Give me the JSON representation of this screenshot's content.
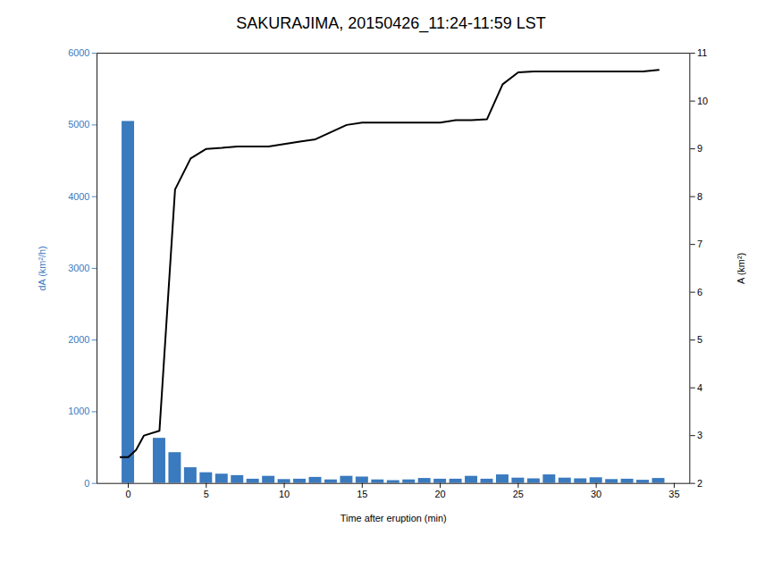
{
  "chart_data": {
    "type": "bar",
    "title": "SAKURAJIMA, 20150426_11:24-11:59 LST",
    "xlabel": "Time after eruption (min)",
    "ylabel": "dA (km²/h)",
    "y2label": "A (km²)",
    "xlim": [
      -2,
      36
    ],
    "xticks": [
      0,
      5,
      10,
      15,
      20,
      25,
      30,
      35
    ],
    "ylim": [
      0,
      6000
    ],
    "yticks": [
      0,
      1000,
      2000,
      3000,
      4000,
      5000,
      6000
    ],
    "y2lim": [
      2,
      11
    ],
    "y2ticks": [
      2,
      3,
      4,
      5,
      6,
      7,
      8,
      9,
      10,
      11
    ],
    "grid": false,
    "series": [
      {
        "type": "bar",
        "color": "#3a7abf",
        "x": [
          0,
          1,
          2,
          3,
          4,
          5,
          6,
          7,
          8,
          9,
          10,
          11,
          12,
          13,
          14,
          15,
          16,
          17,
          18,
          19,
          20,
          21,
          22,
          23,
          24,
          25,
          26,
          27,
          28,
          29,
          30,
          31,
          32,
          33,
          34
        ],
        "values": [
          5050,
          0,
          630,
          430,
          220,
          150,
          130,
          110,
          60,
          100,
          55,
          60,
          85,
          50,
          100,
          90,
          50,
          40,
          50,
          70,
          60,
          60,
          100,
          60,
          120,
          75,
          65,
          120,
          75,
          65,
          80,
          55,
          60,
          45,
          70
        ]
      },
      {
        "type": "line",
        "color": "#000000",
        "axis": "y2",
        "x": [
          -0.5,
          0,
          0.5,
          1,
          2,
          3,
          4,
          5,
          6,
          7,
          8,
          9,
          10,
          11,
          12,
          13,
          14,
          15,
          16,
          17,
          18,
          19,
          20,
          21,
          22,
          23,
          24,
          25,
          26,
          27,
          28,
          29,
          30,
          31,
          32,
          33,
          34
        ],
        "values": [
          2.55,
          2.55,
          2.7,
          3.0,
          3.1,
          8.15,
          8.8,
          9.0,
          9.02,
          9.05,
          9.05,
          9.05,
          9.1,
          9.15,
          9.2,
          9.35,
          9.5,
          9.55,
          9.55,
          9.55,
          9.55,
          9.55,
          9.55,
          9.6,
          9.6,
          9.62,
          10.35,
          10.6,
          10.62,
          10.62,
          10.62,
          10.62,
          10.62,
          10.62,
          10.62,
          10.62,
          10.65
        ]
      }
    ]
  }
}
